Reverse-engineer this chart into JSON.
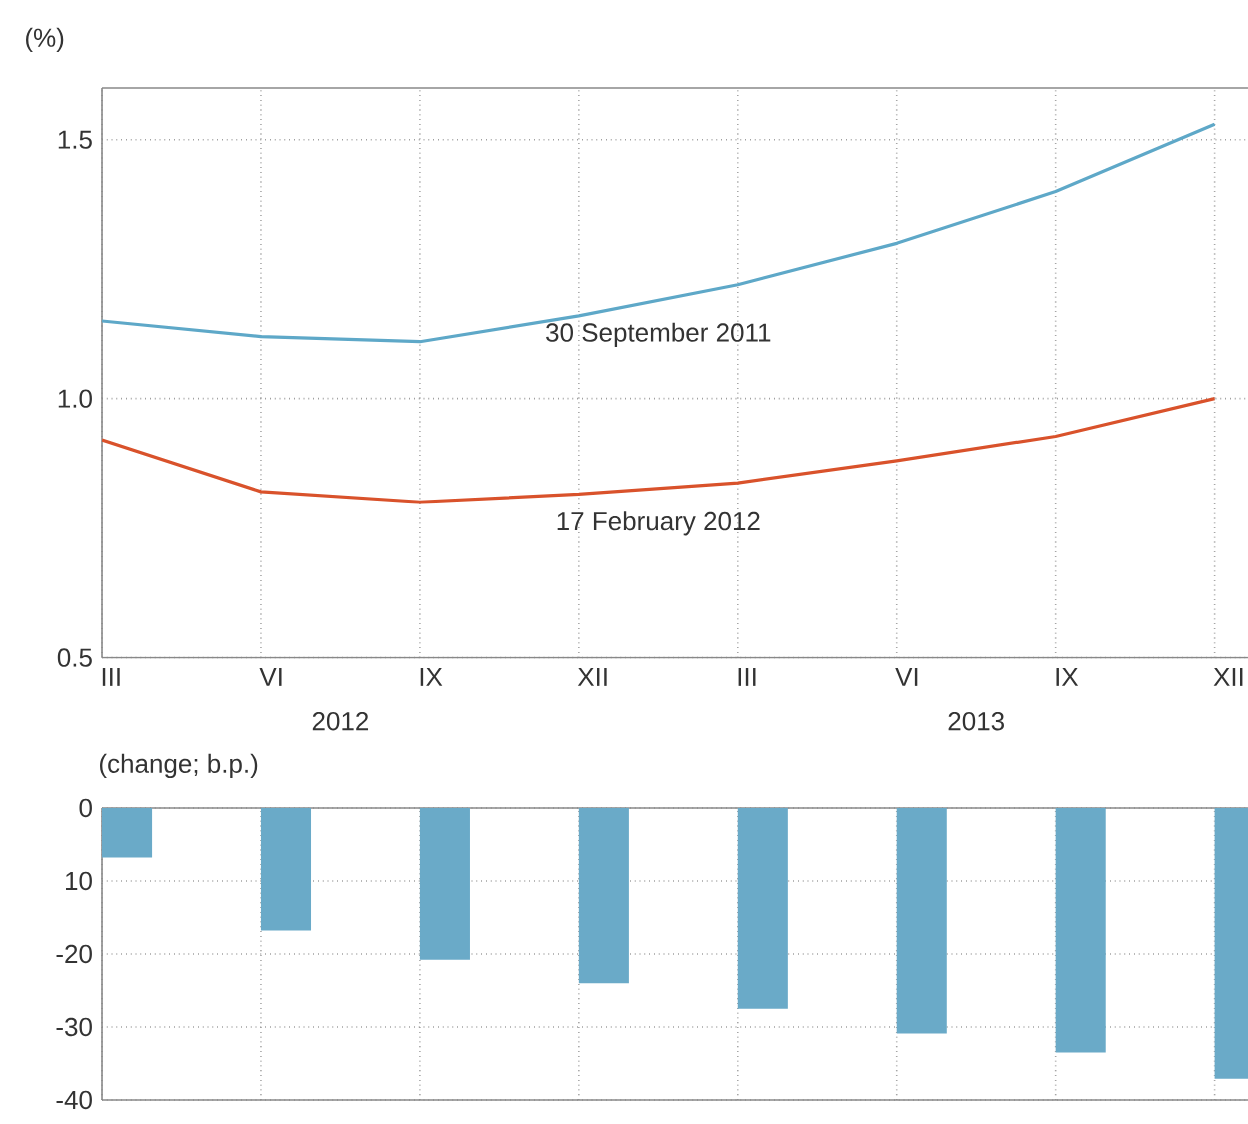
{
  "chart_data": [
    {
      "type": "line",
      "ylabel": "(%)",
      "categories": [
        "III",
        "VI",
        "IX",
        "XII",
        "III",
        "VI",
        "IX",
        "XII"
      ],
      "series": [
        {
          "name": "30 September 2011",
          "color": "#5ea8c8",
          "values": [
            1.15,
            1.12,
            1.11,
            1.16,
            1.22,
            1.3,
            1.4,
            1.53
          ]
        },
        {
          "name": "17 February 2012",
          "color": "#d9522b",
          "values": [
            0.92,
            0.82,
            0.8,
            0.815,
            0.837,
            0.88,
            0.927,
            1.0
          ]
        }
      ],
      "ylim": [
        0.5,
        1.6
      ],
      "yticks": [
        0.5,
        {
          "value": 1,
          "label": "1.0"
        },
        1.5
      ],
      "grid": true,
      "annotations": [
        "2012",
        "2013"
      ]
    },
    {
      "type": "bar",
      "ylabel": "(change; b.p.)",
      "categories": [
        null,
        null,
        null,
        null,
        null,
        null,
        null,
        null
      ],
      "values": [
        -6.8,
        -16.8,
        -20.8,
        -24,
        -27.5,
        -30.9,
        -33.5,
        -37.1
      ],
      "color": "#6aaac8",
      "ylim": [
        -40,
        0
      ],
      "yticks": [
        0,
        {
          "value": -10,
          "label": "10"
        },
        -20,
        -30,
        -40
      ],
      "grid": true,
      "tick_labels": "y"
    }
  ]
}
